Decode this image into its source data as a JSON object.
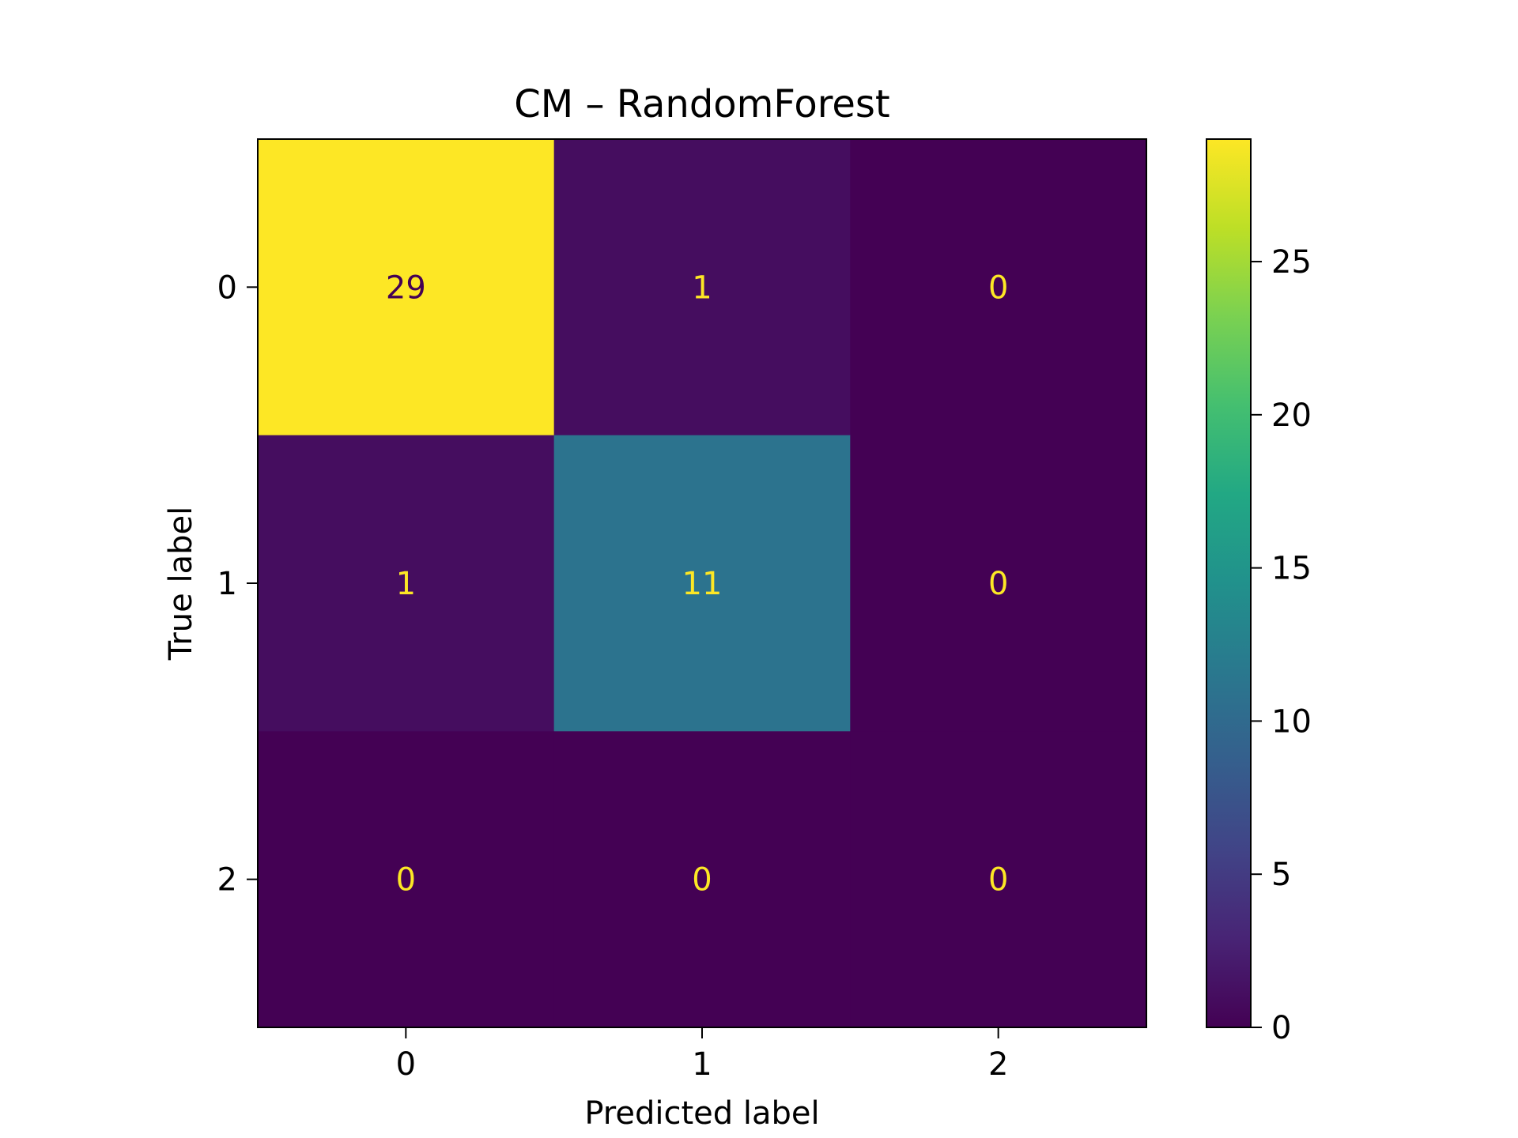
{
  "chart_data": {
    "type": "heatmap",
    "title": "CM – RandomForest",
    "xlabel": "Predicted label",
    "ylabel": "True label",
    "x_categories": [
      "0",
      "1",
      "2"
    ],
    "y_categories": [
      "0",
      "1",
      "2"
    ],
    "matrix": [
      [
        29,
        1,
        0
      ],
      [
        1,
        11,
        0
      ],
      [
        0,
        0,
        0
      ]
    ],
    "cell_labels": [
      [
        "29",
        "1",
        "0"
      ],
      [
        "1",
        "11",
        "0"
      ],
      [
        "0",
        "0",
        "0"
      ]
    ],
    "colormap": "viridis",
    "colorbar": {
      "range": [
        0,
        29
      ],
      "ticks": [
        0,
        5,
        10,
        15,
        20,
        25
      ],
      "tick_labels": [
        "0",
        "5",
        "10",
        "15",
        "20",
        "25"
      ]
    },
    "colors": {
      "text_on_dark": "#fde725",
      "text_on_light": "#440154",
      "frame": "#000000"
    },
    "grid": false
  }
}
